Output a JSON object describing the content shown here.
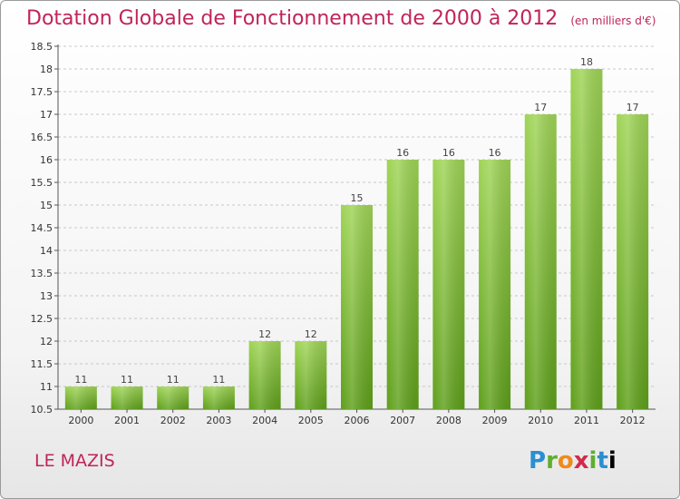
{
  "header": {
    "title": "Dotation Globale de Fonctionnement de 2000 à 2012",
    "unit": "(en milliers d'€)"
  },
  "footer": {
    "commune": "LE MAZIS",
    "logo": "Proxiti",
    "logo_letters": [
      "P",
      "r",
      "o",
      "x",
      "i",
      "t",
      "i"
    ]
  },
  "colors": {
    "title": "#c0245a",
    "bar_top": "#9fd456",
    "bar_bottom": "#5e9f1a",
    "grid": "#c8c8c8"
  },
  "chart_data": {
    "type": "bar",
    "title": "Dotation Globale de Fonctionnement de 2000 à 2012",
    "subtitle": "(en milliers d'€)",
    "xlabel": "",
    "ylabel": "",
    "categories": [
      "2000",
      "2001",
      "2002",
      "2003",
      "2004",
      "2005",
      "2006",
      "2007",
      "2008",
      "2009",
      "2010",
      "2011",
      "2012"
    ],
    "values": [
      11,
      11,
      11,
      11,
      12,
      12,
      15,
      16,
      16,
      16,
      17,
      18,
      17
    ],
    "ylim": [
      10.5,
      18.5
    ],
    "yticks": [
      "10.5",
      "11",
      "11.5",
      "12",
      "12.5",
      "13",
      "13.5",
      "14",
      "14.5",
      "15",
      "15.5",
      "16",
      "16.5",
      "17",
      "17.5",
      "18",
      "18.5"
    ],
    "grid": true,
    "legend": "none"
  }
}
